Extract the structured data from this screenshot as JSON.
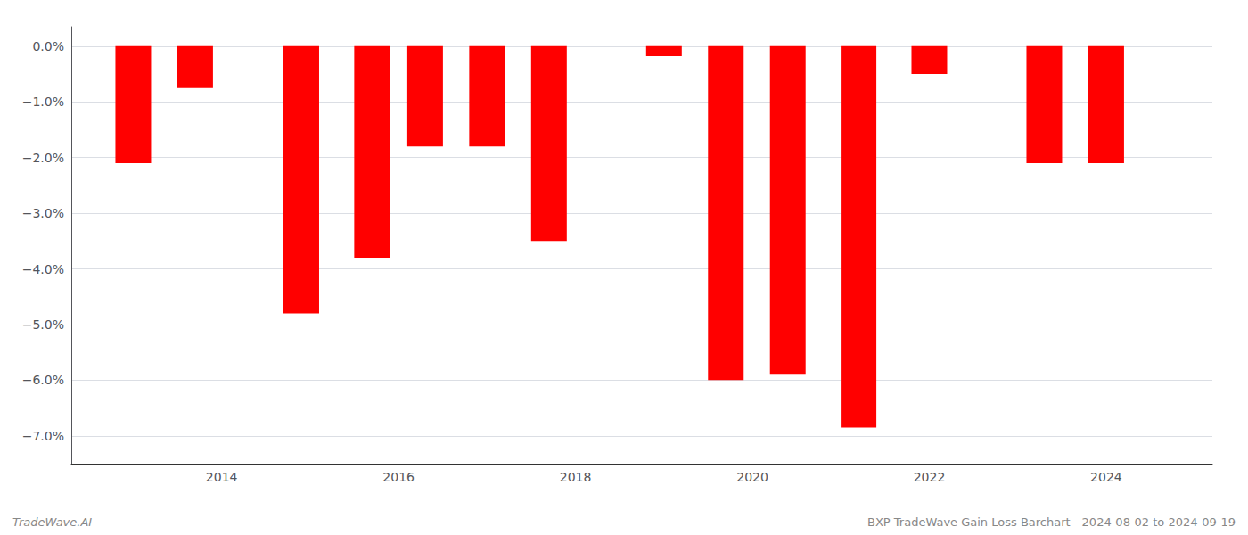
{
  "chart_data": {
    "type": "bar",
    "x": [
      2013.0,
      2013.7,
      2014.9,
      2015.7,
      2016.3,
      2017.0,
      2017.7,
      2019.0,
      2019.7,
      2020.4,
      2021.2,
      2022.0,
      2023.3,
      2024.0
    ],
    "values": [
      -2.1,
      -0.75,
      -4.8,
      -3.8,
      -1.8,
      -1.8,
      -3.5,
      -0.18,
      -6.0,
      -5.9,
      -6.85,
      -0.5,
      -2.1,
      -2.1
    ],
    "color": "#FF0000",
    "xlim": [
      2012.3,
      2025.2
    ],
    "xticks": [
      2014,
      2016,
      2018,
      2020,
      2022,
      2024
    ],
    "ylim": [
      -7.5,
      0.35
    ],
    "yticks": [
      {
        "value": 0.0,
        "label": "0.0%"
      },
      {
        "value": -1.0,
        "label": "−1.0%"
      },
      {
        "value": -2.0,
        "label": "−2.0%"
      },
      {
        "value": -3.0,
        "label": "−3.0%"
      },
      {
        "value": -4.0,
        "label": "−4.0%"
      },
      {
        "value": -5.0,
        "label": "−5.0%"
      },
      {
        "value": -6.0,
        "label": "−6.0%"
      },
      {
        "value": -7.0,
        "label": "−7.0%"
      }
    ],
    "grid": true,
    "annotations": [
      "TradeWave.AI",
      "BXP TradeWave Gain Loss Barchart - 2024-08-02 to 2024-09-19"
    ]
  }
}
